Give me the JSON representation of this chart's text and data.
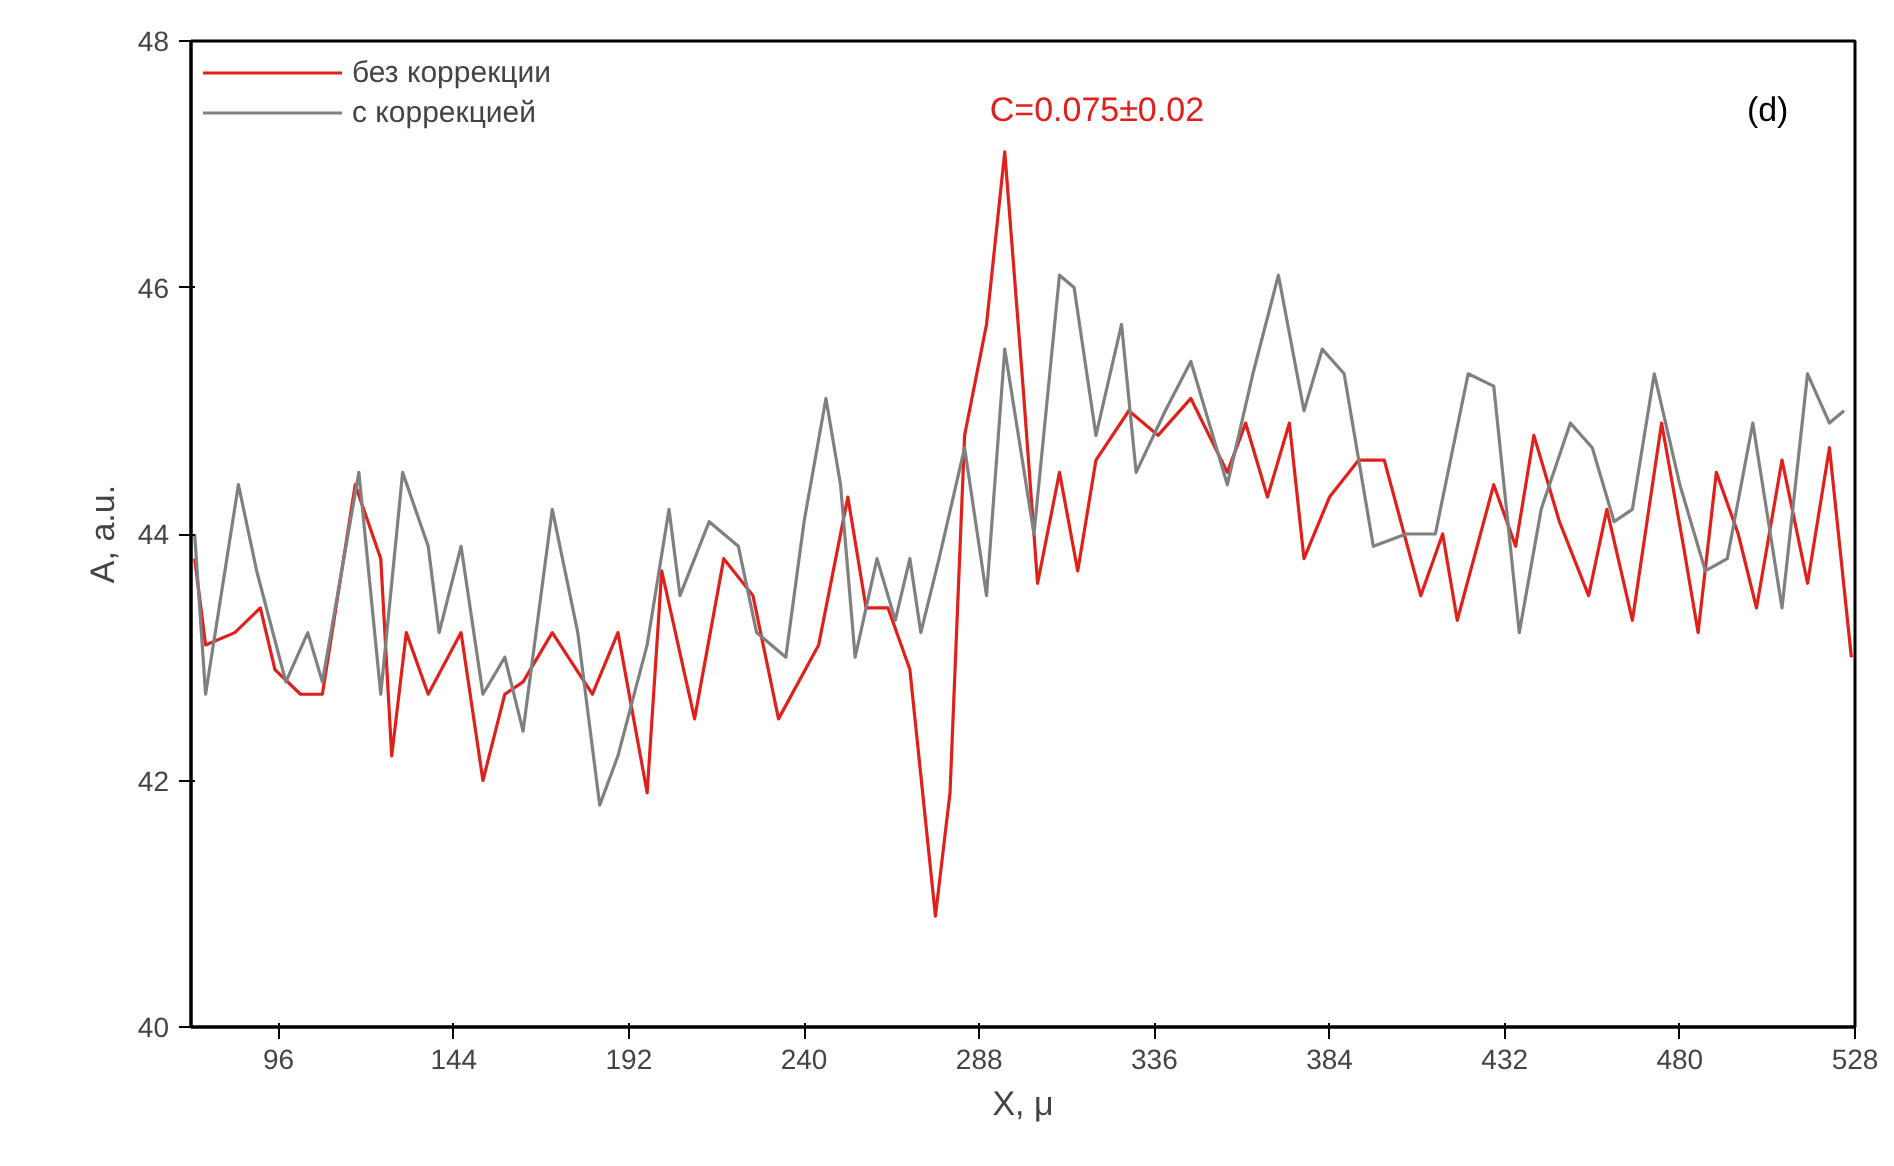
{
  "chart_data": {
    "type": "line",
    "xlabel": "X, μ",
    "ylabel": "A, a.u.",
    "xlim": [
      72,
      528
    ],
    "xticks": [
      96,
      144,
      192,
      240,
      288,
      336,
      384,
      432,
      480,
      528
    ],
    "ylim": [
      40,
      48
    ],
    "yticks": [
      40,
      42,
      44,
      46,
      48
    ],
    "grid": false,
    "legend": "top left",
    "line_style": "solid",
    "marker": "none",
    "annotations": [
      "C=0.075±0.02",
      "(d)"
    ],
    "series": [
      {
        "name": "без коррекции",
        "color": "#e0201b",
        "x": [
          73,
          76,
          84,
          91,
          95,
          102,
          108,
          117,
          124,
          127,
          131,
          137,
          146,
          152,
          158,
          163,
          171,
          182,
          189,
          197,
          201,
          210,
          218,
          226,
          233,
          244,
          252,
          257,
          263,
          269,
          276,
          280,
          284,
          290,
          295,
          300,
          304,
          310,
          315,
          320,
          329,
          337,
          346,
          356,
          361,
          367,
          373,
          377,
          384,
          392,
          399,
          409,
          415,
          419,
          429,
          435,
          440,
          447,
          455,
          460,
          467,
          475,
          481,
          485,
          490,
          496,
          501,
          508,
          515,
          521,
          527
        ],
        "values": [
          43.8,
          43.1,
          43.2,
          43.4,
          42.9,
          42.7,
          42.7,
          44.4,
          43.8,
          42.2,
          43.2,
          42.7,
          43.2,
          42.0,
          42.7,
          42.8,
          43.2,
          42.7,
          43.2,
          41.9,
          43.7,
          42.5,
          43.8,
          43.5,
          42.5,
          43.1,
          44.3,
          43.4,
          43.4,
          42.9,
          40.9,
          41.9,
          44.8,
          45.7,
          47.1,
          45.2,
          43.6,
          44.5,
          43.7,
          44.6,
          45.0,
          44.8,
          45.1,
          44.5,
          44.9,
          44.3,
          44.9,
          43.8,
          44.3,
          44.6,
          44.6,
          43.5,
          44.0,
          43.3,
          44.4,
          43.9,
          44.8,
          44.1,
          43.5,
          44.2,
          43.3,
          44.9,
          43.9,
          43.2,
          44.5,
          44.0,
          43.4,
          44.6,
          43.6,
          44.7,
          43.0
        ]
      },
      {
        "name": "с коррекцией",
        "color": "#808080",
        "x": [
          73,
          76,
          85,
          90,
          98,
          104,
          108,
          118,
          124,
          130,
          137,
          140,
          146,
          152,
          158,
          163,
          171,
          178,
          184,
          189,
          197,
          203,
          206,
          214,
          222,
          227,
          235,
          240,
          246,
          250,
          254,
          260,
          265,
          269,
          272,
          277,
          284,
          290,
          295,
          303,
          310,
          314,
          320,
          327,
          331,
          339,
          346,
          356,
          363,
          370,
          377,
          382,
          388,
          396,
          405,
          413,
          422,
          429,
          436,
          442,
          450,
          456,
          462,
          467,
          473,
          480,
          487,
          493,
          500,
          508,
          515,
          521,
          525
        ],
        "values": [
          44.0,
          42.7,
          44.4,
          43.7,
          42.8,
          43.2,
          42.8,
          44.5,
          42.7,
          44.5,
          43.9,
          43.2,
          43.9,
          42.7,
          43.0,
          42.4,
          44.2,
          43.2,
          41.8,
          42.2,
          43.1,
          44.2,
          43.5,
          44.1,
          43.9,
          43.2,
          43.0,
          44.1,
          45.1,
          44.4,
          43.0,
          43.8,
          43.3,
          43.8,
          43.2,
          43.8,
          44.7,
          43.5,
          45.5,
          44.0,
          46.1,
          46.0,
          44.8,
          45.7,
          44.5,
          45.0,
          45.4,
          44.4,
          45.3,
          46.1,
          45.0,
          45.5,
          45.3,
          43.9,
          44.0,
          44.0,
          45.3,
          45.2,
          43.2,
          44.2,
          44.9,
          44.7,
          44.1,
          44.2,
          45.3,
          44.4,
          43.7,
          43.8,
          44.9,
          43.4,
          45.3,
          44.9,
          45.0
        ]
      }
    ]
  }
}
